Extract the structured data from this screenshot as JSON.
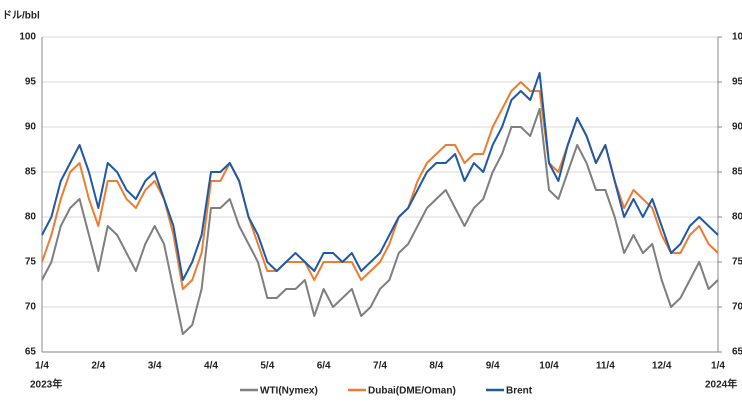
{
  "chart_data": {
    "type": "line",
    "y_label": "ドル/bbl",
    "x_start_label": "2023年",
    "x_end_label": "2024年",
    "categories": [
      "1/4",
      null,
      null,
      null,
      null,
      null,
      "2/4",
      null,
      null,
      null,
      null,
      null,
      "3/4",
      null,
      null,
      null,
      null,
      null,
      "4/4",
      null,
      null,
      null,
      null,
      null,
      "5/4",
      null,
      null,
      null,
      null,
      null,
      "6/4",
      null,
      null,
      null,
      null,
      null,
      "7/4",
      null,
      null,
      null,
      null,
      null,
      "8/4",
      null,
      null,
      null,
      null,
      null,
      "9/4",
      null,
      null,
      null,
      null,
      null,
      "10/4",
      null,
      null,
      null,
      null,
      null,
      "11/4",
      null,
      null,
      null,
      null,
      null,
      "12/4",
      null,
      null,
      null,
      null,
      null,
      "1/4"
    ],
    "series": [
      {
        "name": "WTI(Nymex)",
        "color": "#7f7f7f",
        "values": [
          73,
          75,
          79,
          81,
          82,
          78,
          74,
          79,
          78,
          76,
          74,
          77,
          79,
          77,
          72,
          67,
          68,
          72,
          81,
          81,
          82,
          79,
          77,
          75,
          71,
          71,
          72,
          72,
          73,
          69,
          72,
          70,
          71,
          72,
          69,
          70,
          72,
          73,
          76,
          77,
          79,
          81,
          82,
          83,
          81,
          79,
          81,
          82,
          85,
          87,
          90,
          90,
          89,
          92,
          83,
          82,
          85,
          88,
          86,
          83,
          83,
          80,
          76,
          78,
          76,
          77,
          73,
          70,
          71,
          73,
          75,
          72,
          73
        ]
      },
      {
        "name": "Dubai(DME/Oman)",
        "color": "#ed7d31",
        "values": [
          75,
          78,
          82,
          85,
          86,
          82,
          79,
          84,
          84,
          82,
          81,
          83,
          84,
          82,
          78,
          72,
          73,
          76,
          84,
          84,
          86,
          84,
          80,
          77,
          74,
          74,
          75,
          75,
          75,
          73,
          75,
          75,
          75,
          75,
          73,
          74,
          75,
          77,
          80,
          81,
          84,
          86,
          87,
          88,
          88,
          86,
          87,
          87,
          90,
          92,
          94,
          95,
          94,
          94,
          86,
          85,
          88,
          91,
          89,
          86,
          88,
          84,
          81,
          83,
          82,
          81,
          78,
          76,
          76,
          78,
          79,
          77,
          76
        ]
      },
      {
        "name": "Brent",
        "color": "#1f5aa6",
        "values": [
          78,
          80,
          84,
          86,
          88,
          85,
          81,
          86,
          85,
          83,
          82,
          84,
          85,
          82,
          79,
          73,
          75,
          78,
          85,
          85,
          86,
          84,
          80,
          78,
          75,
          74,
          75,
          76,
          75,
          74,
          76,
          76,
          75,
          76,
          74,
          75,
          76,
          78,
          80,
          81,
          83,
          85,
          86,
          86,
          87,
          84,
          86,
          85,
          88,
          90,
          93,
          94,
          93,
          96,
          86,
          84,
          88,
          91,
          89,
          86,
          88,
          84,
          80,
          82,
          80,
          82,
          79,
          76,
          77,
          79,
          80,
          79,
          78
        ]
      }
    ],
    "ylim": [
      65,
      100
    ],
    "yticks": [
      65,
      70,
      75,
      80,
      85,
      90,
      95,
      100
    ],
    "y2lim": [
      65,
      100
    ],
    "y2ticks": [
      65,
      70,
      75,
      80,
      85,
      90,
      95,
      100
    ],
    "grid": true,
    "legend": "bottom"
  }
}
